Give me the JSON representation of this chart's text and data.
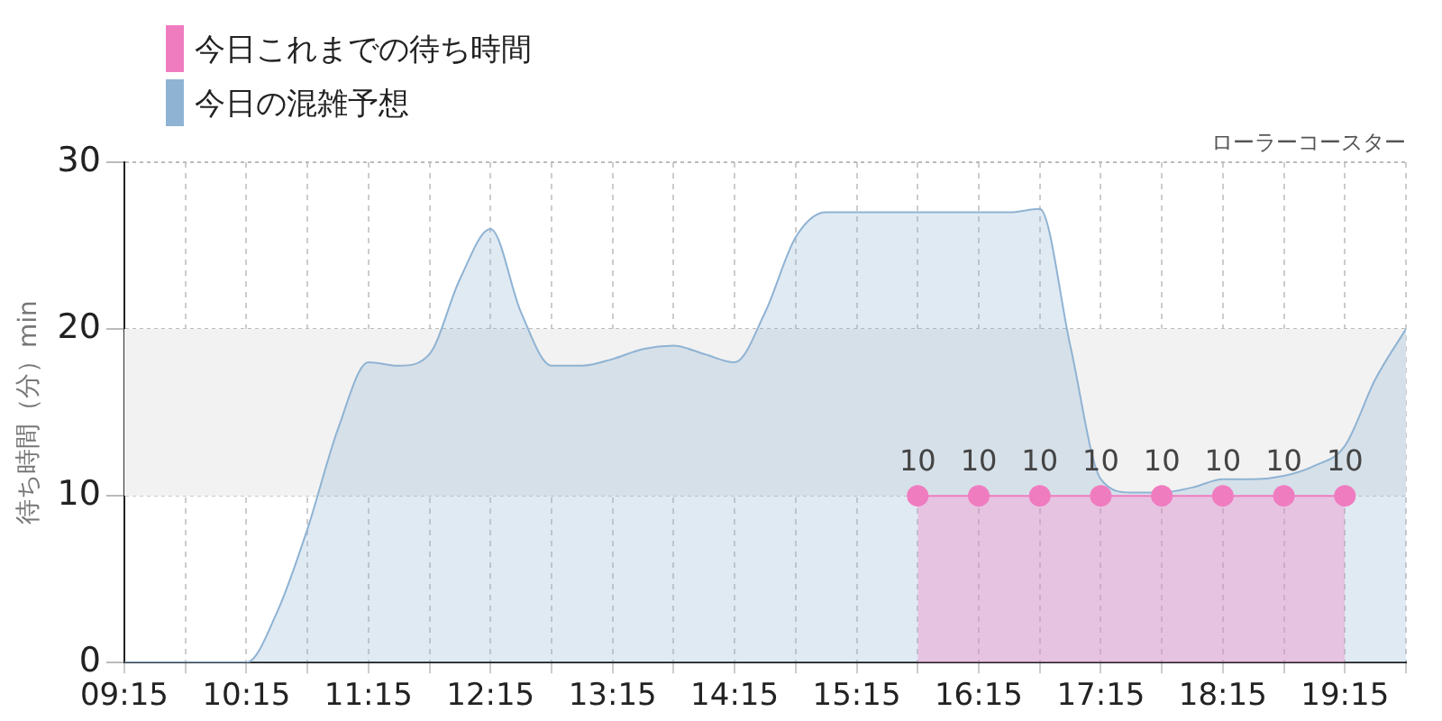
{
  "chart_data": {
    "type": "area",
    "ylabel": "待ち時間（分）min",
    "annotations": [
      "ローラーコースター"
    ],
    "xlim": [
      9.25,
      19.75
    ],
    "xticks": [
      {
        "value": 9.25,
        "label": "09:15"
      },
      {
        "value": 9.75,
        "label": null
      },
      {
        "value": 10.25,
        "label": "10:15"
      },
      {
        "value": 10.75,
        "label": null
      },
      {
        "value": 11.25,
        "label": "11:15"
      },
      {
        "value": 11.75,
        "label": null
      },
      {
        "value": 12.25,
        "label": "12:15"
      },
      {
        "value": 12.75,
        "label": null
      },
      {
        "value": 13.25,
        "label": "13:15"
      },
      {
        "value": 13.75,
        "label": null
      },
      {
        "value": 14.25,
        "label": "14:15"
      },
      {
        "value": 14.75,
        "label": null
      },
      {
        "value": 15.25,
        "label": "15:15"
      },
      {
        "value": 15.75,
        "label": null
      },
      {
        "value": 16.25,
        "label": "16:15"
      },
      {
        "value": 16.75,
        "label": null
      },
      {
        "value": 17.25,
        "label": "17:15"
      },
      {
        "value": 17.75,
        "label": null
      },
      {
        "value": 18.25,
        "label": "18:15"
      },
      {
        "value": 18.75,
        "label": null
      },
      {
        "value": 19.25,
        "label": "19:15"
      },
      {
        "value": 19.75,
        "label": null
      }
    ],
    "ylim": [
      0,
      30
    ],
    "yticks": [
      0,
      10,
      20,
      30
    ],
    "grid": true,
    "legend": "top left",
    "bands": [
      {
        "axis": "y",
        "from": 10,
        "to": 20,
        "color": "#f2f2f2"
      }
    ],
    "series": [
      {
        "name": "今日これまでの待ち時間",
        "color": "#f07cc0",
        "marker": "circle",
        "x": [
          15.75,
          16.25,
          16.75,
          17.25,
          17.75,
          18.25,
          18.75,
          19.25
        ],
        "values": [
          10,
          10,
          10,
          10,
          10,
          10,
          10,
          10
        ],
        "value_labels": [
          "10",
          "10",
          "10",
          "10",
          "10",
          "10",
          "10",
          "10"
        ]
      },
      {
        "name": "今日の混雑予想",
        "color": "#8fb3d3",
        "marker": "none",
        "x": [
          9.25,
          9.75,
          10.1,
          10.25,
          10.5,
          10.75,
          11.0,
          11.25,
          11.5,
          11.75,
          12.0,
          12.25,
          12.5,
          12.75,
          13.0,
          13.25,
          13.5,
          13.75,
          14.0,
          14.25,
          14.5,
          14.75,
          15.0,
          15.25,
          15.5,
          15.75,
          16.0,
          16.25,
          16.5,
          16.75,
          17.0,
          17.25,
          17.5,
          17.75,
          18.0,
          18.25,
          18.5,
          18.75,
          19.0,
          19.25,
          19.5,
          19.75
        ],
        "values": [
          0,
          0,
          0,
          0,
          3,
          8,
          14,
          18,
          17.8,
          18.5,
          23,
          26,
          21,
          17.8,
          17.8,
          18.2,
          18.8,
          19,
          18.5,
          18,
          21,
          25.5,
          27,
          27,
          27,
          27,
          27,
          27,
          27,
          27.2,
          19,
          11,
          10.2,
          10.2,
          10.5,
          11,
          11,
          11.2,
          11.8,
          13,
          17,
          20
        ]
      }
    ]
  }
}
